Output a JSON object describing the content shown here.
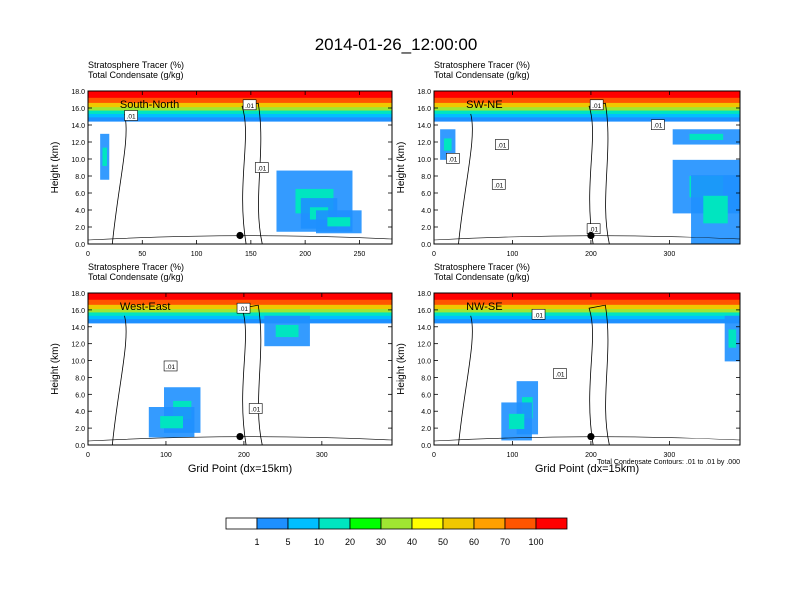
{
  "page_title": "2014-01-26_12:00:00",
  "chart_data": [
    {
      "type": "heatmap",
      "name": "South-North",
      "title_lines": [
        "Stratosphere Tracer   (%)",
        "Total Condensate   (g/kg)"
      ],
      "ylabel": "Height (km)",
      "xlabel": "",
      "xlim": [
        0,
        280
      ],
      "ylim": [
        0,
        18
      ],
      "xticks": [
        0,
        50,
        100,
        150,
        200,
        250
      ],
      "yticks": [
        0.0,
        2.0,
        4.0,
        6.0,
        8.0,
        10.0,
        12.0,
        14.0,
        16.0,
        18.0
      ],
      "contour_labels": [
        ".01",
        ".01",
        ".01"
      ],
      "marker_x": 140,
      "marker_y": 1.0
    },
    {
      "type": "heatmap",
      "name": "SW-NE",
      "title_lines": [
        "Stratosphere Tracer   (%)",
        "Total Condensate   (g/kg)"
      ],
      "ylabel": "Height (km)",
      "xlabel": "",
      "xlim": [
        0,
        390
      ],
      "ylim": [
        0,
        18
      ],
      "xticks": [
        0,
        100,
        200,
        300
      ],
      "yticks": [
        0.0,
        2.0,
        4.0,
        6.0,
        8.0,
        10.0,
        12.0,
        14.0,
        16.0,
        18.0
      ],
      "contour_labels": [
        ".01",
        ".01",
        ".01",
        ".01",
        ".01",
        ".01"
      ],
      "marker_x": 200,
      "marker_y": 1.0
    },
    {
      "type": "heatmap",
      "name": "West-East",
      "title_lines": [
        "Stratosphere Tracer   (%)",
        "Total Condensate   (g/kg)"
      ],
      "ylabel": "Height (km)",
      "xlabel": "Grid Point (dx=15km)",
      "xlim": [
        0,
        390
      ],
      "ylim": [
        0,
        18
      ],
      "xticks": [
        0,
        100,
        200,
        300
      ],
      "yticks": [
        0.0,
        2.0,
        4.0,
        6.0,
        8.0,
        10.0,
        12.0,
        14.0,
        16.0,
        18.0
      ],
      "contour_labels": [
        ".01",
        ".01",
        ".01"
      ],
      "marker_x": 195,
      "marker_y": 1.0
    },
    {
      "type": "heatmap",
      "name": "NW-SE",
      "title_lines": [
        "Stratosphere Tracer   (%)",
        "Total Condensate   (g/kg)"
      ],
      "ylabel": "Height (km)",
      "xlabel": "Grid Point (dx=15km)",
      "xlim": [
        0,
        390
      ],
      "ylim": [
        0,
        18
      ],
      "xticks": [
        0,
        100,
        200,
        300
      ],
      "yticks": [
        0.0,
        2.0,
        4.0,
        6.0,
        8.0,
        10.0,
        12.0,
        14.0,
        16.0,
        18.0
      ],
      "contour_labels": [
        ".01",
        ".01"
      ],
      "marker_x": 200,
      "marker_y": 1.0,
      "footnote": "Total Condensate Contours: .01 to .01 by .000"
    }
  ],
  "colorbar": {
    "colors": [
      "#ffffff",
      "#1e90ff",
      "#00bfff",
      "#00e5c0",
      "#00ff00",
      "#a0e632",
      "#ffff00",
      "#f0c800",
      "#ffa000",
      "#ff5500",
      "#ff0000"
    ],
    "labels": [
      "1",
      "5",
      "10",
      "20",
      "30",
      "40",
      "50",
      "60",
      "70",
      "100"
    ]
  }
}
